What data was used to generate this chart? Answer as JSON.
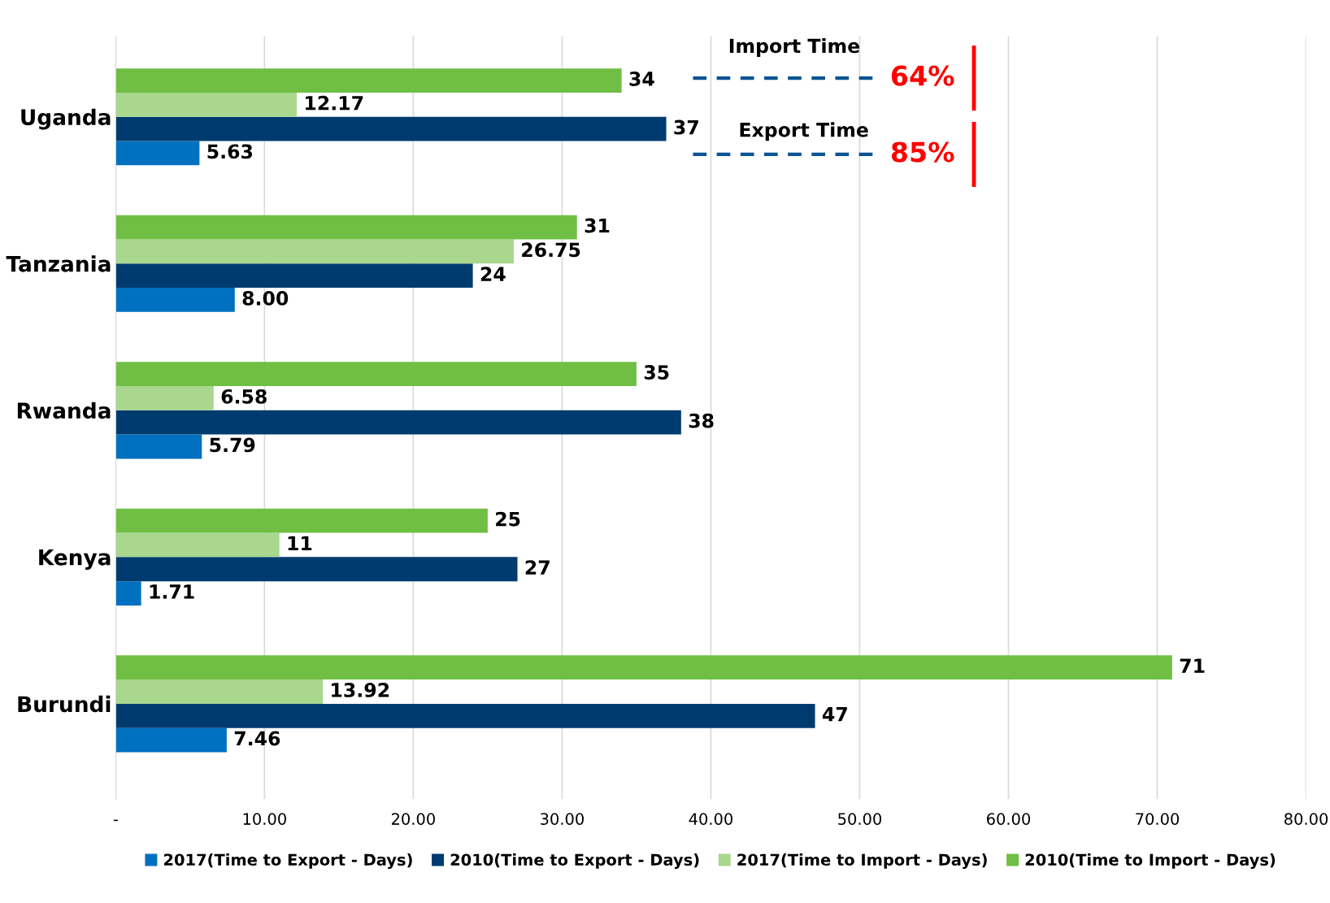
{
  "chart_data": {
    "type": "bar",
    "orientation": "horizontal",
    "categories": [
      "Uganda",
      "Tanzania",
      "Rwanda",
      "Kenya",
      "Burundi"
    ],
    "series": [
      {
        "name": "2017(Time to Export - Days)",
        "color": "#0070c0",
        "values": [
          5.63,
          8.0,
          5.79,
          1.71,
          7.46
        ],
        "value_labels": [
          "5.63",
          "8.00",
          "5.79",
          "1.71",
          "7.46"
        ]
      },
      {
        "name": "2010(Time to Export - Days)",
        "color": "#003b6f",
        "values": [
          37,
          24,
          38,
          27,
          47
        ],
        "value_labels": [
          "37",
          "24",
          "38",
          "27",
          "47"
        ]
      },
      {
        "name": "2017(Time to Import - Days)",
        "color": "#a9d78e",
        "values": [
          12.17,
          26.75,
          6.58,
          11,
          13.92
        ],
        "value_labels": [
          "12.17",
          "26.75",
          "6.58",
          "11",
          "13.92"
        ]
      },
      {
        "name": "2010(Time to Import - Days)",
        "color": "#70bf44",
        "values": [
          34,
          31,
          35,
          25,
          71
        ],
        "value_labels": [
          "34",
          "31",
          "35",
          "25",
          "71"
        ]
      }
    ],
    "xlim": [
      0,
      80
    ],
    "xticks": [
      {
        "value": 0,
        "label": "-"
      },
      {
        "value": 10,
        "label": "10.00"
      },
      {
        "value": 20,
        "label": "20.00"
      },
      {
        "value": 30,
        "label": "30.00"
      },
      {
        "value": 40,
        "label": "40.00"
      },
      {
        "value": 50,
        "label": "50.00"
      },
      {
        "value": 60,
        "label": "60.00"
      },
      {
        "value": 70,
        "label": "70.00"
      },
      {
        "value": 80,
        "label": "80.00"
      }
    ],
    "grid": "x",
    "legend": "bottom",
    "annotations": [
      "Import Time",
      "64%",
      "Export Time",
      "85%"
    ]
  }
}
